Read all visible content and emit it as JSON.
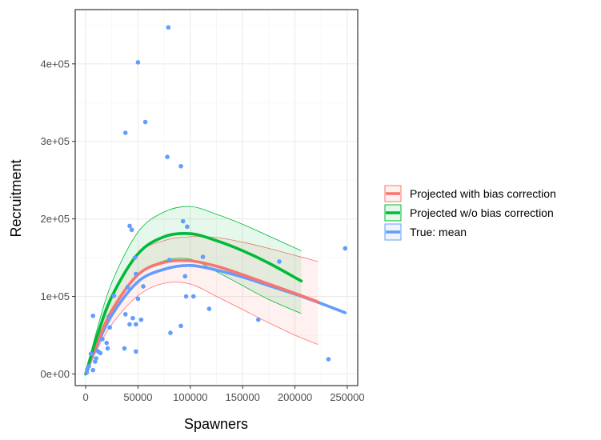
{
  "chart_data": {
    "type": "scatter",
    "xlabel": "Spawners",
    "ylabel": "Recruitment",
    "xlim": [
      -10000,
      260000
    ],
    "ylim": [
      -15000,
      470000
    ],
    "x_ticks": [
      0,
      50000,
      100000,
      150000,
      200000,
      250000
    ],
    "x_tick_labels": [
      "0",
      "50000",
      "100000",
      "150000",
      "200000",
      "250000"
    ],
    "y_ticks": [
      0,
      100000,
      200000,
      300000,
      400000
    ],
    "y_tick_labels": [
      "0e+00",
      "1e+05",
      "2e+05",
      "3e+05",
      "4e+05"
    ],
    "grid": true,
    "legend_position": "right",
    "colors": {
      "points": "#619CFF",
      "with_bias": "#F8766D",
      "without_bias": "#00BA38",
      "true_mean": "#619CFF",
      "grid_major": "#ebebeb",
      "grid_minor": "#f5f5f5",
      "panel_border": "#333333"
    },
    "points": [
      [
        79000,
        447000
      ],
      [
        50000,
        402000
      ],
      [
        57000,
        325000
      ],
      [
        38000,
        311000
      ],
      [
        78000,
        280000
      ],
      [
        91000,
        268000
      ],
      [
        93000,
        197000
      ],
      [
        97000,
        190000
      ],
      [
        42000,
        191000
      ],
      [
        44000,
        186000
      ],
      [
        112000,
        151000
      ],
      [
        185000,
        145000
      ],
      [
        248000,
        162000
      ],
      [
        47000,
        150000
      ],
      [
        80000,
        147000
      ],
      [
        48000,
        129000
      ],
      [
        95000,
        126000
      ],
      [
        55000,
        113000
      ],
      [
        40000,
        112000
      ],
      [
        103000,
        100000
      ],
      [
        96000,
        100000
      ],
      [
        27000,
        101000
      ],
      [
        50000,
        97000
      ],
      [
        118000,
        84000
      ],
      [
        38000,
        77000
      ],
      [
        7000,
        75000
      ],
      [
        22000,
        74000
      ],
      [
        45000,
        72000
      ],
      [
        53000,
        70000
      ],
      [
        165000,
        70000
      ],
      [
        48000,
        64000
      ],
      [
        42000,
        64000
      ],
      [
        23000,
        60000
      ],
      [
        91000,
        62000
      ],
      [
        81000,
        53000
      ],
      [
        16000,
        45000
      ],
      [
        20000,
        40000
      ],
      [
        37000,
        33000
      ],
      [
        21000,
        33000
      ],
      [
        48000,
        29000
      ],
      [
        12000,
        29000
      ],
      [
        14000,
        27000
      ],
      [
        5000,
        26000
      ],
      [
        10000,
        20000
      ],
      [
        3000,
        10000
      ],
      [
        1500,
        6000
      ],
      [
        1000,
        2000
      ],
      [
        7000,
        5000
      ],
      [
        9000,
        16000
      ],
      [
        232000,
        19000
      ]
    ],
    "series": [
      {
        "name": "Projected with bias correction",
        "x": [
          0,
          10000,
          25000,
          50000,
          75000,
          100000,
          125000,
          150000,
          175000,
          200000,
          222000
        ],
        "y": [
          0,
          37000,
          82000,
          128000,
          144000,
          146000,
          139000,
          128000,
          116000,
          104000,
          93000
        ],
        "lower": [
          0,
          29000,
          64000,
          101000,
          117000,
          116000,
          100000,
          83000,
          66000,
          50000,
          38000
        ],
        "upper": [
          0,
          45000,
          100000,
          155000,
          172000,
          177000,
          176000,
          170000,
          162000,
          153000,
          145000
        ]
      },
      {
        "name": "Projected w/o bias correction",
        "x": [
          0,
          10000,
          25000,
          50000,
          75000,
          100000,
          125000,
          150000,
          175000,
          206000
        ],
        "y": [
          0,
          45000,
          100000,
          155000,
          177000,
          181000,
          172000,
          159000,
          143000,
          120000
        ],
        "lower": [
          0,
          37000,
          82000,
          127000,
          146000,
          148000,
          132000,
          114000,
          96000,
          78000
        ],
        "upper": [
          0,
          53000,
          118000,
          183000,
          209000,
          216000,
          206000,
          193000,
          178000,
          159000
        ]
      },
      {
        "name": "True: mean",
        "x": [
          0,
          10000,
          25000,
          50000,
          75000,
          100000,
          125000,
          150000,
          175000,
          200000,
          225000,
          248000
        ],
        "y": [
          0,
          34000,
          76000,
          119000,
          135000,
          140000,
          134000,
          125000,
          114000,
          103000,
          91000,
          79000
        ]
      }
    ],
    "legend": [
      "Projected with bias correction",
      "Projected w/o bias correction",
      "True: mean"
    ]
  }
}
